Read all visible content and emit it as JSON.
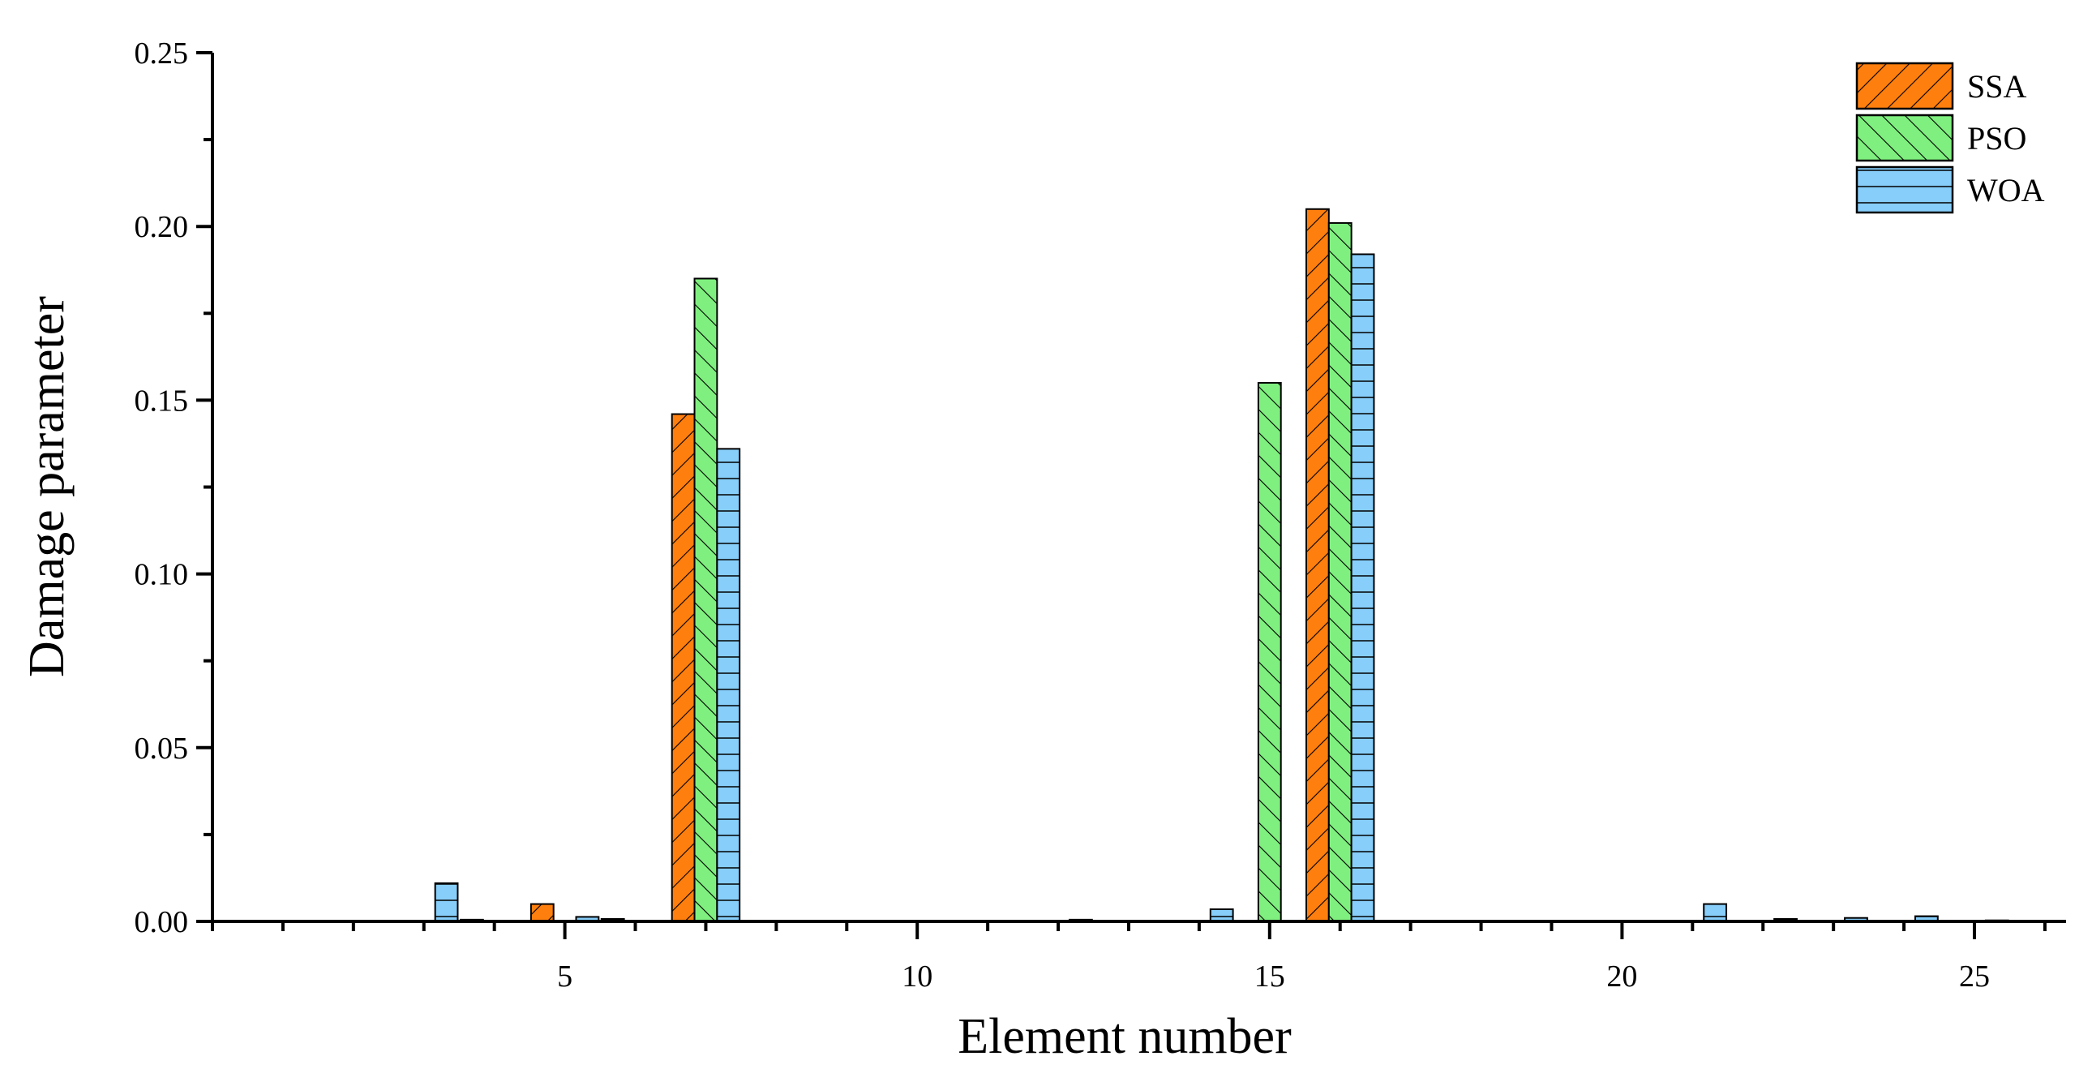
{
  "chart_data": {
    "type": "bar",
    "xlabel": "Element number",
    "ylabel": "Damage parameter",
    "xlim": [
      0,
      26.3
    ],
    "ylim": [
      0,
      0.25
    ],
    "x_ticks": [
      5,
      10,
      15,
      20,
      25
    ],
    "x_tick_labels": [
      "5",
      "10",
      "15",
      "20",
      "25"
    ],
    "y_ticks": [
      0,
      0.05,
      0.1,
      0.15,
      0.2,
      0.25
    ],
    "y_tick_labels": [
      "0.00",
      "0.05",
      "0.10",
      "0.15",
      "0.20",
      "0.25"
    ],
    "categories": [
      1,
      2,
      3,
      4,
      5,
      6,
      7,
      8,
      9,
      10,
      11,
      12,
      13,
      14,
      15,
      16,
      17,
      18,
      19,
      20,
      21,
      22,
      23,
      24,
      25
    ],
    "series": [
      {
        "name": "SSA",
        "color": "#ff7f0e",
        "pattern": "diagonal-forward",
        "values": [
          0,
          0,
          0,
          0.0005,
          0.005,
          0.0007,
          0.146,
          0,
          0,
          0,
          0,
          0,
          0,
          0,
          0,
          0.205,
          0,
          0,
          0,
          0,
          0,
          0,
          0,
          0,
          0
        ]
      },
      {
        "name": "PSO",
        "color": "#7ff07f",
        "pattern": "diagonal-backward",
        "values": [
          0,
          0,
          0,
          0,
          0,
          0,
          0.185,
          0,
          0,
          0,
          0,
          0,
          0,
          0,
          0.155,
          0.201,
          0,
          0,
          0,
          0,
          0,
          0,
          0,
          0,
          0
        ]
      },
      {
        "name": "WOA",
        "color": "#87cefa",
        "pattern": "horizontal",
        "values": [
          0,
          0,
          0.011,
          0,
          0.0013,
          0,
          0.136,
          0,
          0,
          0,
          0,
          0.0005,
          0,
          0.0035,
          0,
          0.192,
          0,
          0,
          0,
          0,
          0.005,
          0.0007,
          0.001,
          0.0015,
          0.0003
        ]
      }
    ],
    "legend": {
      "position": "top-right"
    },
    "grid": false
  }
}
